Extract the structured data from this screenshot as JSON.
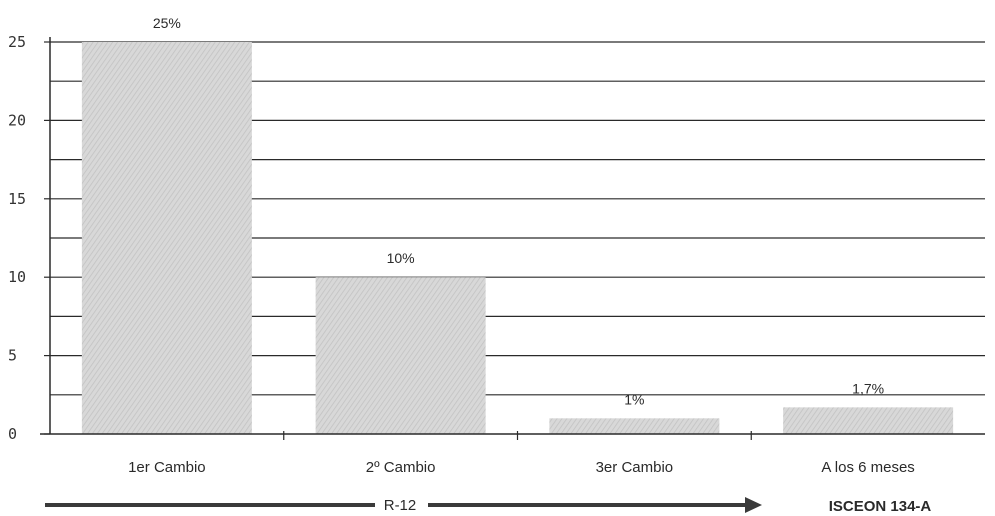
{
  "colors": {
    "bar_fill": "#d6d6d6",
    "bar_stripe": "#bdbdbd",
    "line": "#2a2a2a",
    "arrow": "#3a3a3a"
  },
  "chart_data": {
    "type": "bar",
    "categories": [
      "1er Cambio",
      "2º Cambio",
      "3er Cambio",
      "A los 6 meses"
    ],
    "values": [
      25,
      10,
      1,
      1.7
    ],
    "data_labels": [
      "25%",
      "10%",
      "1%",
      "1,7%"
    ],
    "y_ticks": [
      "0",
      "5",
      "10",
      "15",
      "20",
      "25"
    ],
    "ylim": [
      0,
      25
    ],
    "grid": true,
    "groups": [
      {
        "label": "R-12",
        "categories": [
          0,
          1,
          2
        ]
      },
      {
        "label": "ISCEON 134-A",
        "categories": [
          3
        ]
      }
    ],
    "title": "",
    "xlabel": "",
    "ylabel": ""
  }
}
